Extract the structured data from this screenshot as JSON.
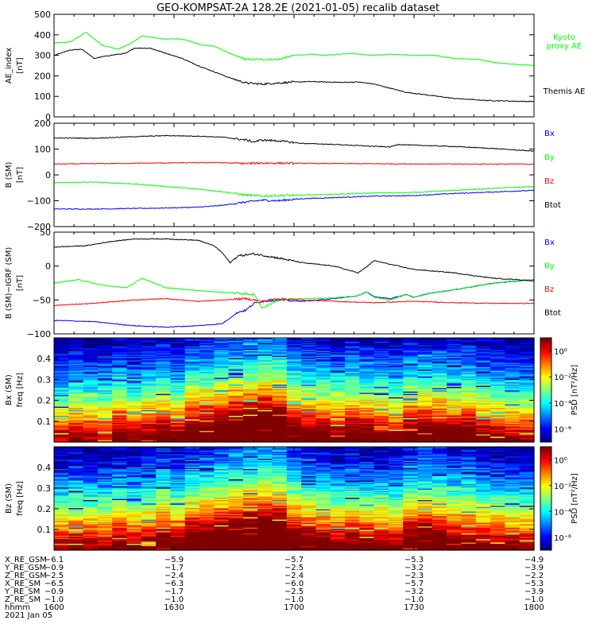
{
  "title": "GEO-KOMPSAT-2A 128.2E (2021-01-05) recalib dataset",
  "chart_data": [
    {
      "type": "line",
      "ylabel": [
        "AE_index",
        "[nT]"
      ],
      "ylim": [
        0,
        500
      ],
      "yticks": [
        "0",
        "100",
        "200",
        "300",
        "400",
        "500"
      ],
      "x_range": [
        "1600",
        "1800"
      ],
      "series": [
        {
          "name": "Kyoto proxy AE",
          "label_lines": [
            "Kyoto",
            "proxy AE"
          ],
          "color": "#00ff00",
          "x": [
            0,
            4,
            8,
            12,
            16,
            19,
            22,
            27,
            32,
            37,
            40,
            45,
            48,
            52,
            56,
            60,
            64,
            68,
            74,
            80,
            84,
            90,
            95,
            100,
            106,
            110,
            116,
            120
          ],
          "y": [
            360,
            365,
            412,
            350,
            330,
            355,
            395,
            380,
            380,
            350,
            345,
            300,
            280,
            280,
            280,
            300,
            305,
            300,
            310,
            300,
            305,
            300,
            300,
            285,
            280,
            265,
            255,
            250
          ]
        },
        {
          "name": "Themis AE",
          "label_lines": [
            "Themis AE"
          ],
          "color": "#000000",
          "x": [
            0,
            4,
            7,
            10,
            14,
            18,
            20,
            24,
            28,
            32,
            36,
            40,
            44,
            48,
            52,
            56,
            60,
            64,
            68,
            72,
            76,
            80,
            84,
            88,
            92,
            96,
            100,
            104,
            108,
            112,
            116,
            120
          ],
          "y": [
            300,
            325,
            330,
            285,
            300,
            310,
            335,
            335,
            310,
            285,
            250,
            220,
            190,
            165,
            160,
            165,
            170,
            172,
            170,
            168,
            170,
            160,
            140,
            120,
            110,
            100,
            90,
            85,
            80,
            78,
            76,
            75
          ]
        }
      ]
    },
    {
      "type": "line",
      "ylabel": [
        "B (SM)",
        "[nT]"
      ],
      "ylim": [
        -200,
        200
      ],
      "yticks": [
        "−200",
        "−100",
        "0",
        "100",
        "200"
      ],
      "x_range": [
        "1600",
        "1800"
      ],
      "series": [
        {
          "name": "Bx",
          "color": "#0000ff",
          "x": [
            0,
            10,
            20,
            28,
            36,
            42,
            48,
            52,
            56,
            62,
            70,
            80,
            90,
            100,
            110,
            120
          ],
          "y": [
            -132,
            -132,
            -130,
            -128,
            -125,
            -118,
            -105,
            -98,
            -100,
            -92,
            -88,
            -82,
            -80,
            -72,
            -66,
            -60
          ]
        },
        {
          "name": "By",
          "color": "#00ff00",
          "x": [
            0,
            10,
            20,
            28,
            36,
            42,
            48,
            52,
            56,
            62,
            70,
            80,
            90,
            100,
            110,
            120
          ],
          "y": [
            -30,
            -28,
            -35,
            -45,
            -55,
            -65,
            -78,
            -82,
            -80,
            -78,
            -75,
            -70,
            -68,
            -60,
            -52,
            -45
          ]
        },
        {
          "name": "Bz",
          "color": "#ff0000",
          "x": [
            0,
            20,
            40,
            48,
            52,
            60,
            80,
            100,
            120
          ],
          "y": [
            42,
            45,
            48,
            44,
            46,
            45,
            43,
            42,
            42
          ]
        },
        {
          "name": "Btot",
          "color": "#000000",
          "x": [
            0,
            10,
            20,
            28,
            36,
            42,
            48,
            50,
            52,
            56,
            62,
            70,
            78,
            84,
            86,
            90,
            100,
            110,
            120
          ],
          "y": [
            143,
            142,
            148,
            152,
            150,
            146,
            135,
            128,
            135,
            132,
            122,
            118,
            112,
            108,
            118,
            115,
            110,
            102,
            92
          ]
        }
      ]
    },
    {
      "type": "line",
      "ylabel": [
        "B (SM)−IGRF (SM)",
        "[nT]"
      ],
      "ylim": [
        -100,
        50
      ],
      "yticks": [
        "−100",
        "−50",
        "0",
        "50"
      ],
      "x_range": [
        "1600",
        "1800"
      ],
      "series": [
        {
          "name": "Bx",
          "color": "#0000ff",
          "x": [
            0,
            10,
            20,
            28,
            36,
            42,
            46,
            48,
            50,
            52,
            56,
            62,
            70,
            76,
            78,
            80,
            84,
            88,
            90,
            94,
            100,
            110,
            120
          ],
          "y": [
            -80,
            -82,
            -88,
            -90,
            -88,
            -85,
            -68,
            -65,
            -55,
            -52,
            -50,
            -52,
            -48,
            -44,
            -38,
            -45,
            -48,
            -42,
            -46,
            -40,
            -35,
            -25,
            -20
          ]
        },
        {
          "name": "By",
          "color": "#00ff00",
          "x": [
            0,
            6,
            12,
            18,
            22,
            28,
            34,
            40,
            46,
            50,
            52,
            56,
            62,
            70,
            76,
            78,
            80,
            84,
            88,
            90,
            94,
            100,
            110,
            120
          ],
          "y": [
            -25,
            -20,
            -28,
            -32,
            -18,
            -32,
            -35,
            -38,
            -40,
            -42,
            -62,
            -50,
            -48,
            -47,
            -44,
            -38,
            -46,
            -50,
            -42,
            -46,
            -40,
            -35,
            -25,
            -20
          ]
        },
        {
          "name": "Bz",
          "color": "#ff0000",
          "x": [
            0,
            10,
            20,
            28,
            36,
            42,
            48,
            52,
            56,
            62,
            70,
            80,
            90,
            100,
            110,
            120
          ],
          "y": [
            -58,
            -55,
            -50,
            -48,
            -52,
            -50,
            -48,
            -52,
            -48,
            -50,
            -52,
            -54,
            -52,
            -54,
            -55,
            -55
          ]
        },
        {
          "name": "Btot",
          "color": "#000000",
          "x": [
            0,
            8,
            14,
            20,
            28,
            36,
            40,
            42,
            44,
            46,
            50,
            56,
            62,
            70,
            76,
            78,
            80,
            86,
            90,
            96,
            100,
            106,
            110,
            116,
            120
          ],
          "y": [
            28,
            30,
            36,
            40,
            40,
            38,
            30,
            20,
            5,
            15,
            18,
            12,
            5,
            0,
            -10,
            -2,
            8,
            0,
            -5,
            -8,
            -10,
            -15,
            -18,
            -20,
            -22
          ]
        }
      ]
    },
    {
      "type": "heatmap",
      "ylabel": [
        "Bx (SM)",
        "freq [Hz]"
      ],
      "ylim": [
        0,
        0.5
      ],
      "yticks": [
        "0.1",
        "0.2",
        "0.3",
        "0.4"
      ],
      "colorbar_label": "PSD [nT²/Hz]",
      "colorbar_ticks": [
        "10⁰",
        "10⁻²",
        "10⁻⁴",
        "10⁻⁶"
      ],
      "colorbar_decades": [
        0,
        -2,
        -4,
        -6
      ],
      "colorbar_range": [
        -7,
        1
      ],
      "activity": [
        0.25,
        0.35,
        0.3,
        0.28,
        0.45,
        0.3,
        0.4,
        0.45,
        0.35,
        0.55,
        0.6,
        0.65,
        0.72,
        0.78,
        0.82,
        0.8,
        0.55,
        0.5,
        0.45,
        0.4,
        0.5,
        0.45,
        0.42,
        0.35,
        0.5,
        0.55,
        0.52,
        0.45,
        0.5,
        0.4,
        0.35,
        0.3,
        0.28
      ]
    },
    {
      "type": "heatmap",
      "ylabel": [
        "Bz (SM)",
        "freq [Hz]"
      ],
      "ylim": [
        0,
        0.5
      ],
      "yticks": [
        "0.1",
        "0.2",
        "0.3",
        "0.4"
      ],
      "colorbar_label": "PSD [nT²/Hz]",
      "colorbar_ticks": [
        "10⁰",
        "10⁻²",
        "10⁻⁴",
        "10⁻⁶"
      ],
      "colorbar_decades": [
        0,
        -2,
        -4,
        -6
      ],
      "colorbar_range": [
        -7,
        1
      ],
      "activity": [
        0.3,
        0.35,
        0.32,
        0.3,
        0.42,
        0.32,
        0.38,
        0.52,
        0.4,
        0.58,
        0.62,
        0.68,
        0.75,
        0.8,
        0.85,
        0.82,
        0.58,
        0.5,
        0.45,
        0.38,
        0.42,
        0.4,
        0.38,
        0.35,
        0.55,
        0.6,
        0.55,
        0.45,
        0.48,
        0.4,
        0.35,
        0.32,
        0.3
      ]
    }
  ],
  "orbit_table": {
    "rows": [
      {
        "label": "X_RE_GSM",
        "values": [
          "−6.1",
          "−5.9",
          "−5.7",
          "−5.3",
          "−4.9"
        ]
      },
      {
        "label": "Y_RE_GSM",
        "values": [
          "−0.9",
          "−1.7",
          "−2.5",
          "−3.2",
          "−3.9"
        ]
      },
      {
        "label": "Z_RE_GSM",
        "values": [
          "−2.5",
          "−2.4",
          "−2.4",
          "−2.3",
          "−2.2"
        ]
      },
      {
        "label": "X_RE_SM",
        "values": [
          "−6.5",
          "−6.3",
          "−6.0",
          "−5.7",
          "−5.3"
        ]
      },
      {
        "label": "Y_RE_SM",
        "values": [
          "−0.9",
          "−1.7",
          "−2.5",
          "−3.2",
          "−3.9"
        ]
      },
      {
        "label": "Z_RE_SM",
        "values": [
          "−1.0",
          "−1.0",
          "−1.0",
          "−1.0",
          "−1.0"
        ]
      },
      {
        "label": "hhmm",
        "values": [
          "1600",
          "1630",
          "1700",
          "1730",
          "1800"
        ]
      }
    ],
    "date": "2021 Jan 05"
  }
}
